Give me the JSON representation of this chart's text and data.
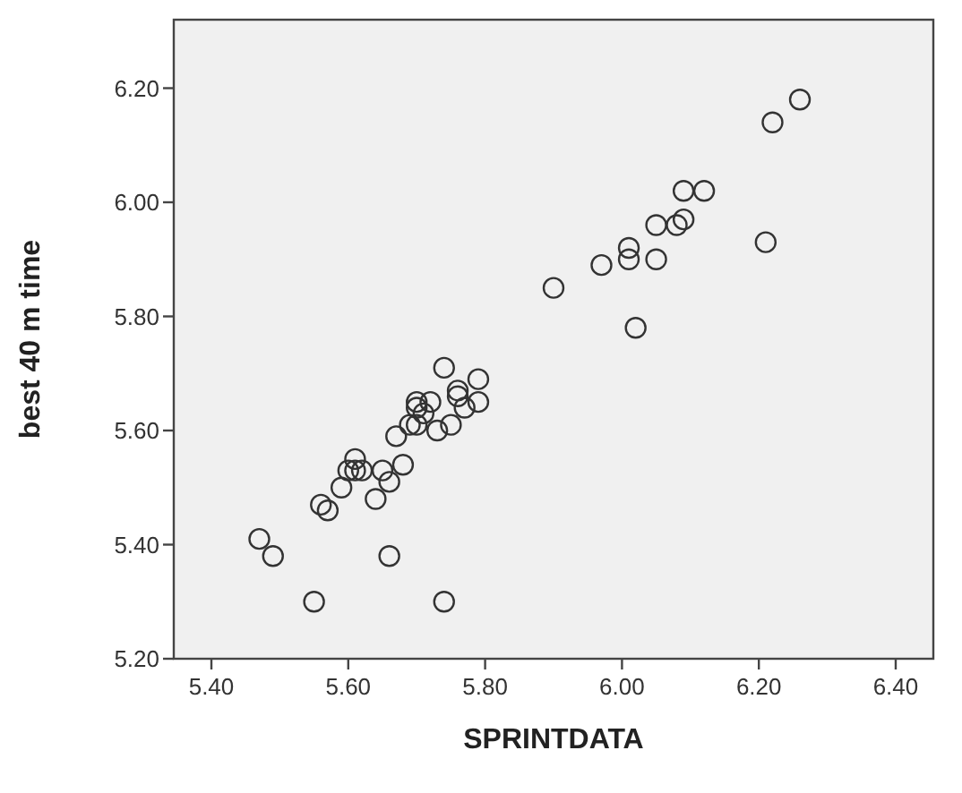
{
  "chart_data": {
    "type": "scatter",
    "xlabel": "SPRINTDATA",
    "ylabel": "best 40 m time",
    "xlim": [
      5.345,
      6.455
    ],
    "ylim": [
      5.2,
      6.32
    ],
    "xticks": [
      {
        "value": 5.4,
        "label": "5.40"
      },
      {
        "value": 5.6,
        "label": "5.60"
      },
      {
        "value": 5.8,
        "label": "5.80"
      },
      {
        "value": 6.0,
        "label": "6.00"
      },
      {
        "value": 6.2,
        "label": "6.20"
      },
      {
        "value": 6.4,
        "label": "6.40"
      }
    ],
    "yticks": [
      {
        "value": 5.2,
        "label": "5.20"
      },
      {
        "value": 5.4,
        "label": "5.40"
      },
      {
        "value": 5.6,
        "label": "5.60"
      },
      {
        "value": 5.8,
        "label": "5.80"
      },
      {
        "value": 6.0,
        "label": "6.00"
      },
      {
        "value": 6.2,
        "label": "6.20"
      }
    ],
    "marker": "circle",
    "grid": false,
    "series": [
      {
        "color": "#333333",
        "x": [
          5.47,
          5.49,
          5.55,
          5.56,
          5.57,
          5.59,
          5.6,
          5.61,
          5.61,
          5.62,
          5.64,
          5.65,
          5.66,
          5.66,
          5.67,
          5.68,
          5.69,
          5.7,
          5.7,
          5.7,
          5.71,
          5.72,
          5.73,
          5.74,
          5.74,
          5.75,
          5.76,
          5.76,
          5.77,
          5.79,
          5.79,
          5.9,
          5.97,
          6.01,
          6.01,
          6.02,
          6.05,
          6.05,
          6.08,
          6.09,
          6.09,
          6.12,
          6.21,
          6.22,
          6.26
        ],
        "values": [
          5.41,
          5.38,
          5.3,
          5.47,
          5.46,
          5.5,
          5.53,
          5.55,
          5.53,
          5.53,
          5.48,
          5.53,
          5.51,
          5.38,
          5.59,
          5.54,
          5.61,
          5.61,
          5.65,
          5.64,
          5.63,
          5.65,
          5.6,
          5.71,
          5.3,
          5.61,
          5.67,
          5.66,
          5.64,
          5.69,
          5.65,
          5.85,
          5.89,
          5.92,
          5.9,
          5.78,
          5.96,
          5.9,
          5.96,
          5.97,
          6.02,
          6.02,
          5.93,
          6.14,
          6.18
        ]
      }
    ]
  }
}
